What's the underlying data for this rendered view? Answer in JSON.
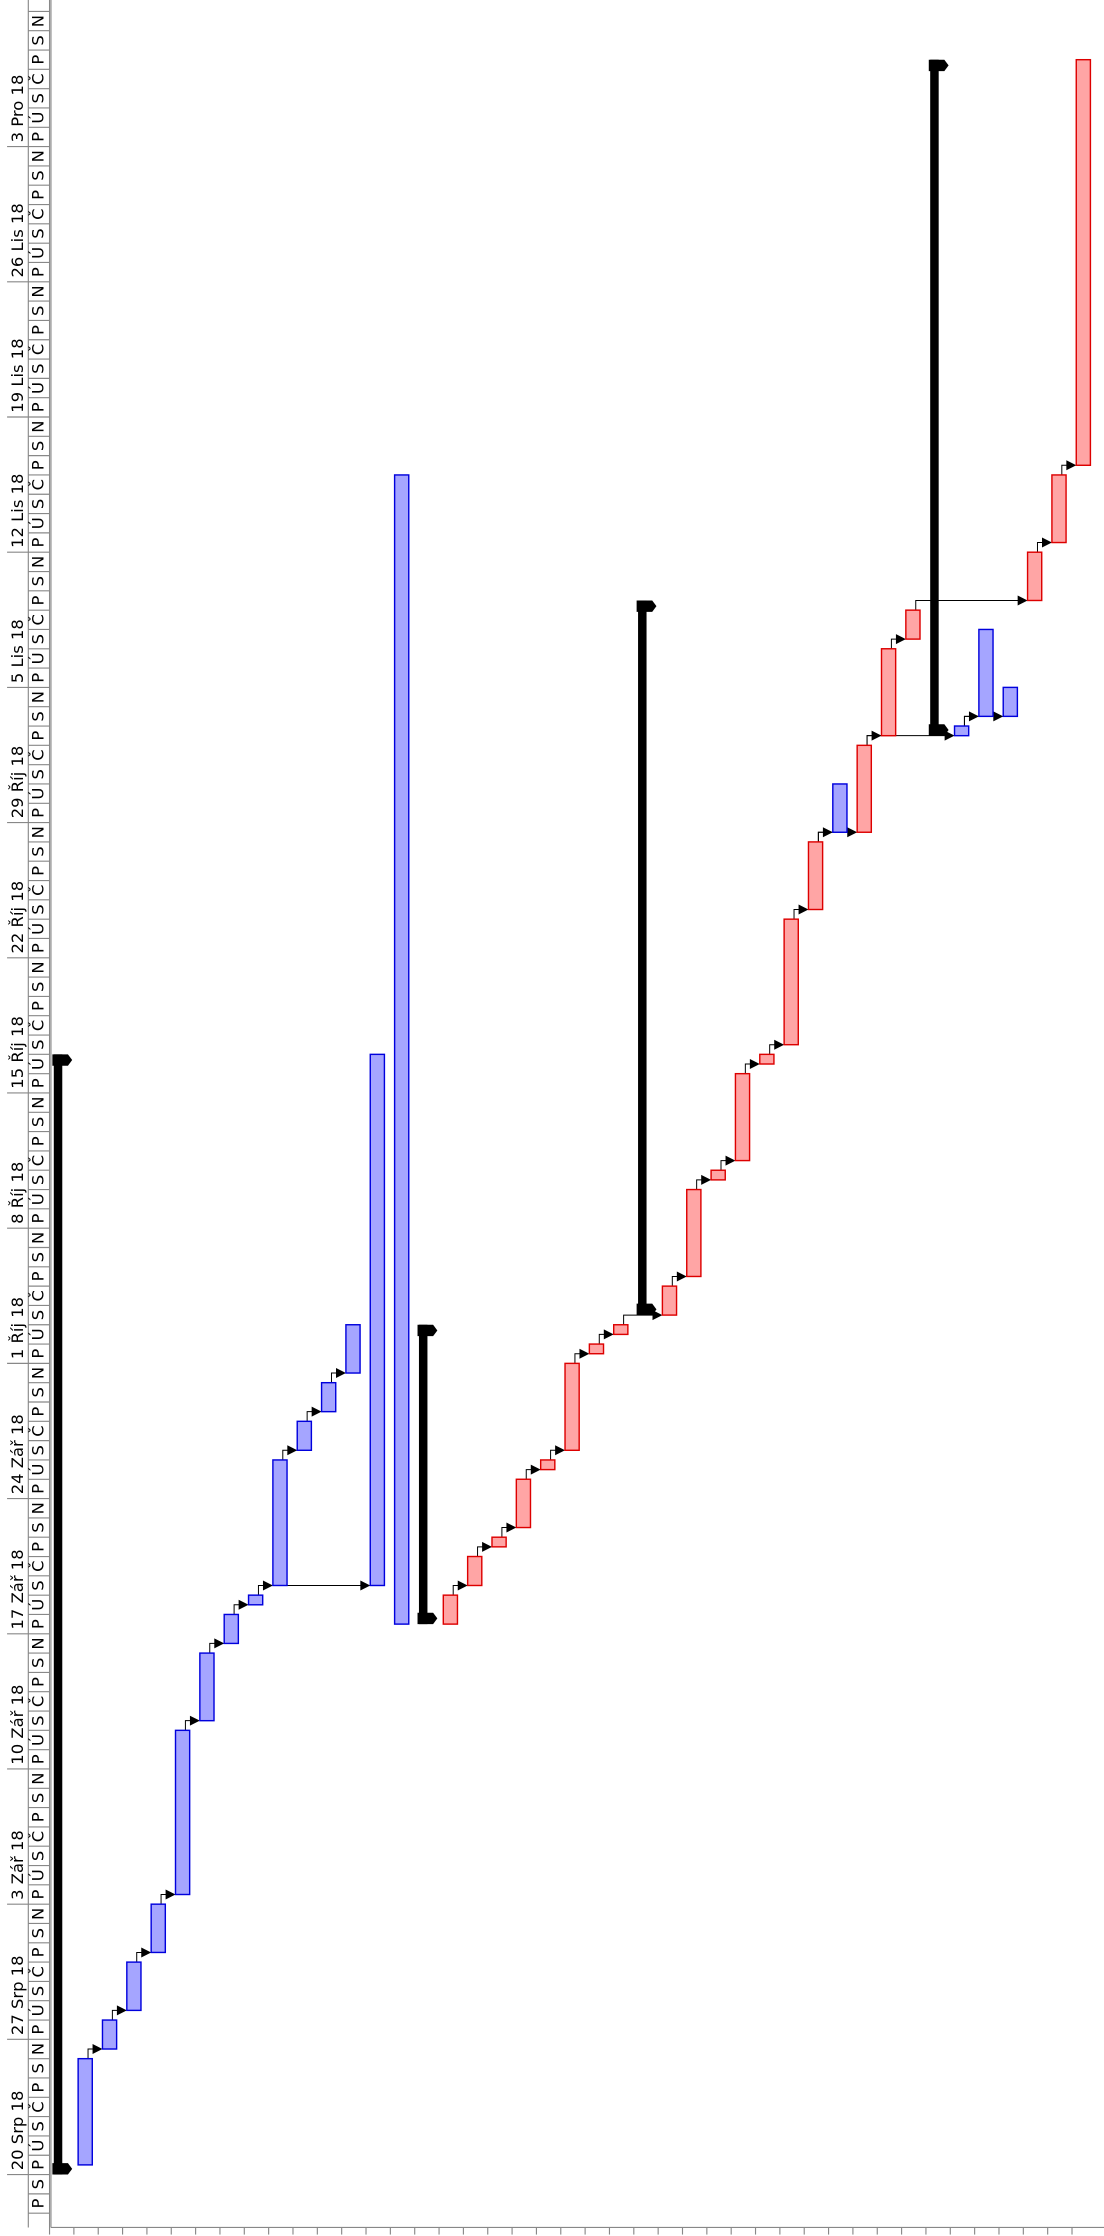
{
  "gantt": {
    "time_range": [
      "2018-08-18",
      "2018-12-10"
    ],
    "weeks": [
      {
        "start": "2018-08-20",
        "label": "20 Srp 18"
      },
      {
        "start": "2018-08-27",
        "label": "27 Srp 18"
      },
      {
        "start": "2018-09-03",
        "label": "3 Zář 18"
      },
      {
        "start": "2018-09-10",
        "label": "10 Zář 18"
      },
      {
        "start": "2018-09-17",
        "label": "17 Zář 18"
      },
      {
        "start": "2018-09-24",
        "label": "24 Zář 18"
      },
      {
        "start": "2018-10-01",
        "label": "1 Říj 18"
      },
      {
        "start": "2018-10-08",
        "label": "8 Říj 18"
      },
      {
        "start": "2018-10-15",
        "label": "15 Říj 18"
      },
      {
        "start": "2018-10-22",
        "label": "22 Říj 18"
      },
      {
        "start": "2018-10-29",
        "label": "29 Říj 18"
      },
      {
        "start": "2018-11-05",
        "label": "5 Lis 18"
      },
      {
        "start": "2018-11-12",
        "label": "12 Lis 18"
      },
      {
        "start": "2018-11-19",
        "label": "19 Lis 18"
      },
      {
        "start": "2018-11-26",
        "label": "26 Lis 18"
      },
      {
        "start": "2018-12-03",
        "label": "3 Pro 18"
      }
    ],
    "weekday_letters": [
      "P",
      "Ú",
      "S",
      "Č",
      "P",
      "S",
      "N"
    ],
    "lead_days": [
      "P",
      "S"
    ],
    "colors": {
      "task": {
        "fill": "#a5a5ff",
        "stroke": "#0000dd"
      },
      "critical": {
        "fill": "#ffa5a5",
        "stroke": "#dd0000"
      },
      "summary": {
        "fill": "#000000",
        "stroke": "#000000"
      }
    },
    "tasks": [
      {
        "kind": "summary",
        "start": "2018-08-20",
        "end": "2018-10-17"
      },
      {
        "kind": "task",
        "start": "2018-08-20T12",
        "end": "2018-08-26"
      },
      {
        "kind": "task",
        "start": "2018-08-26T12",
        "end": "2018-08-28"
      },
      {
        "kind": "task",
        "start": "2018-08-28T12",
        "end": "2018-08-31"
      },
      {
        "kind": "task",
        "start": "2018-08-31T12",
        "end": "2018-09-03"
      },
      {
        "kind": "task",
        "start": "2018-09-03T12",
        "end": "2018-09-12"
      },
      {
        "kind": "task",
        "start": "2018-09-12T12",
        "end": "2018-09-16"
      },
      {
        "kind": "task",
        "start": "2018-09-16T12",
        "end": "2018-09-18"
      },
      {
        "kind": "task",
        "start": "2018-09-18T12",
        "end": "2018-09-19"
      },
      {
        "kind": "task",
        "start": "2018-09-19T12",
        "end": "2018-09-26"
      },
      {
        "kind": "task",
        "start": "2018-09-26T12",
        "end": "2018-09-28"
      },
      {
        "kind": "task",
        "start": "2018-09-28T12",
        "end": "2018-09-30"
      },
      {
        "kind": "task",
        "start": "2018-09-30T12",
        "end": "2018-10-03"
      },
      {
        "kind": "task",
        "start": "2018-09-19T12",
        "end": "2018-10-17"
      },
      {
        "kind": "task",
        "start": "2018-09-17T12",
        "end": "2018-11-16"
      },
      {
        "kind": "summary",
        "start": "2018-09-17T12",
        "end": "2018-10-03"
      },
      {
        "kind": "critical",
        "start": "2018-09-17T12",
        "end": "2018-09-19"
      },
      {
        "kind": "critical",
        "start": "2018-09-19T12",
        "end": "2018-09-21"
      },
      {
        "kind": "critical",
        "start": "2018-09-21T12",
        "end": "2018-09-22"
      },
      {
        "kind": "critical",
        "start": "2018-09-22T12",
        "end": "2018-09-25"
      },
      {
        "kind": "critical",
        "start": "2018-09-25T12",
        "end": "2018-09-26"
      },
      {
        "kind": "critical",
        "start": "2018-09-26T12",
        "end": "2018-10-01"
      },
      {
        "kind": "critical",
        "start": "2018-10-01T12",
        "end": "2018-10-02"
      },
      {
        "kind": "critical",
        "start": "2018-10-02T12",
        "end": "2018-10-03"
      },
      {
        "kind": "summary",
        "start": "2018-10-03T12",
        "end": "2018-11-09T12"
      },
      {
        "kind": "critical",
        "start": "2018-10-03T12",
        "end": "2018-10-05"
      },
      {
        "kind": "critical",
        "start": "2018-10-05T12",
        "end": "2018-10-10"
      },
      {
        "kind": "critical",
        "start": "2018-10-10T12",
        "end": "2018-10-11"
      },
      {
        "kind": "critical",
        "start": "2018-10-11T12",
        "end": "2018-10-16"
      },
      {
        "kind": "critical",
        "start": "2018-10-16T12",
        "end": "2018-10-17"
      },
      {
        "kind": "critical",
        "start": "2018-10-17T12",
        "end": "2018-10-24"
      },
      {
        "kind": "critical",
        "start": "2018-10-24T12",
        "end": "2018-10-28"
      },
      {
        "kind": "task",
        "start": "2018-10-28T12",
        "end": "2018-10-31"
      },
      {
        "kind": "critical",
        "start": "2018-10-28T12",
        "end": "2018-11-02"
      },
      {
        "kind": "critical",
        "start": "2018-11-02T12",
        "end": "2018-11-07"
      },
      {
        "kind": "critical",
        "start": "2018-11-07T12",
        "end": "2018-11-09"
      },
      {
        "kind": "summary",
        "start": "2018-11-02T12",
        "end": "2018-12-07T12"
      },
      {
        "kind": "task",
        "start": "2018-11-02T12",
        "end": "2018-11-03"
      },
      {
        "kind": "task",
        "start": "2018-11-03T12",
        "end": "2018-11-08"
      },
      {
        "kind": "task",
        "start": "2018-11-03T12",
        "end": "2018-11-05"
      },
      {
        "kind": "critical",
        "start": "2018-11-09T12",
        "end": "2018-11-12"
      },
      {
        "kind": "critical",
        "start": "2018-11-12T12",
        "end": "2018-11-16"
      },
      {
        "kind": "critical",
        "start": "2018-11-16T12",
        "end": "2018-12-07T12"
      }
    ],
    "links": [
      [
        1,
        2
      ],
      [
        2,
        3
      ],
      [
        3,
        4
      ],
      [
        4,
        5
      ],
      [
        5,
        6
      ],
      [
        6,
        7
      ],
      [
        7,
        8
      ],
      [
        8,
        9
      ],
      [
        9,
        13
      ],
      [
        9,
        10
      ],
      [
        10,
        11
      ],
      [
        11,
        12
      ],
      [
        16,
        17
      ],
      [
        17,
        18
      ],
      [
        18,
        19
      ],
      [
        19,
        20
      ],
      [
        20,
        21
      ],
      [
        21,
        22
      ],
      [
        22,
        23
      ],
      [
        23,
        25
      ],
      [
        25,
        26
      ],
      [
        26,
        27
      ],
      [
        27,
        28
      ],
      [
        28,
        29
      ],
      [
        29,
        30
      ],
      [
        30,
        31
      ],
      [
        31,
        32
      ],
      [
        31,
        33
      ],
      [
        33,
        34
      ],
      [
        34,
        35
      ],
      [
        33,
        37
      ],
      [
        37,
        38
      ],
      [
        37,
        39
      ],
      [
        35,
        40
      ],
      [
        40,
        41
      ],
      [
        41,
        42
      ]
    ]
  }
}
